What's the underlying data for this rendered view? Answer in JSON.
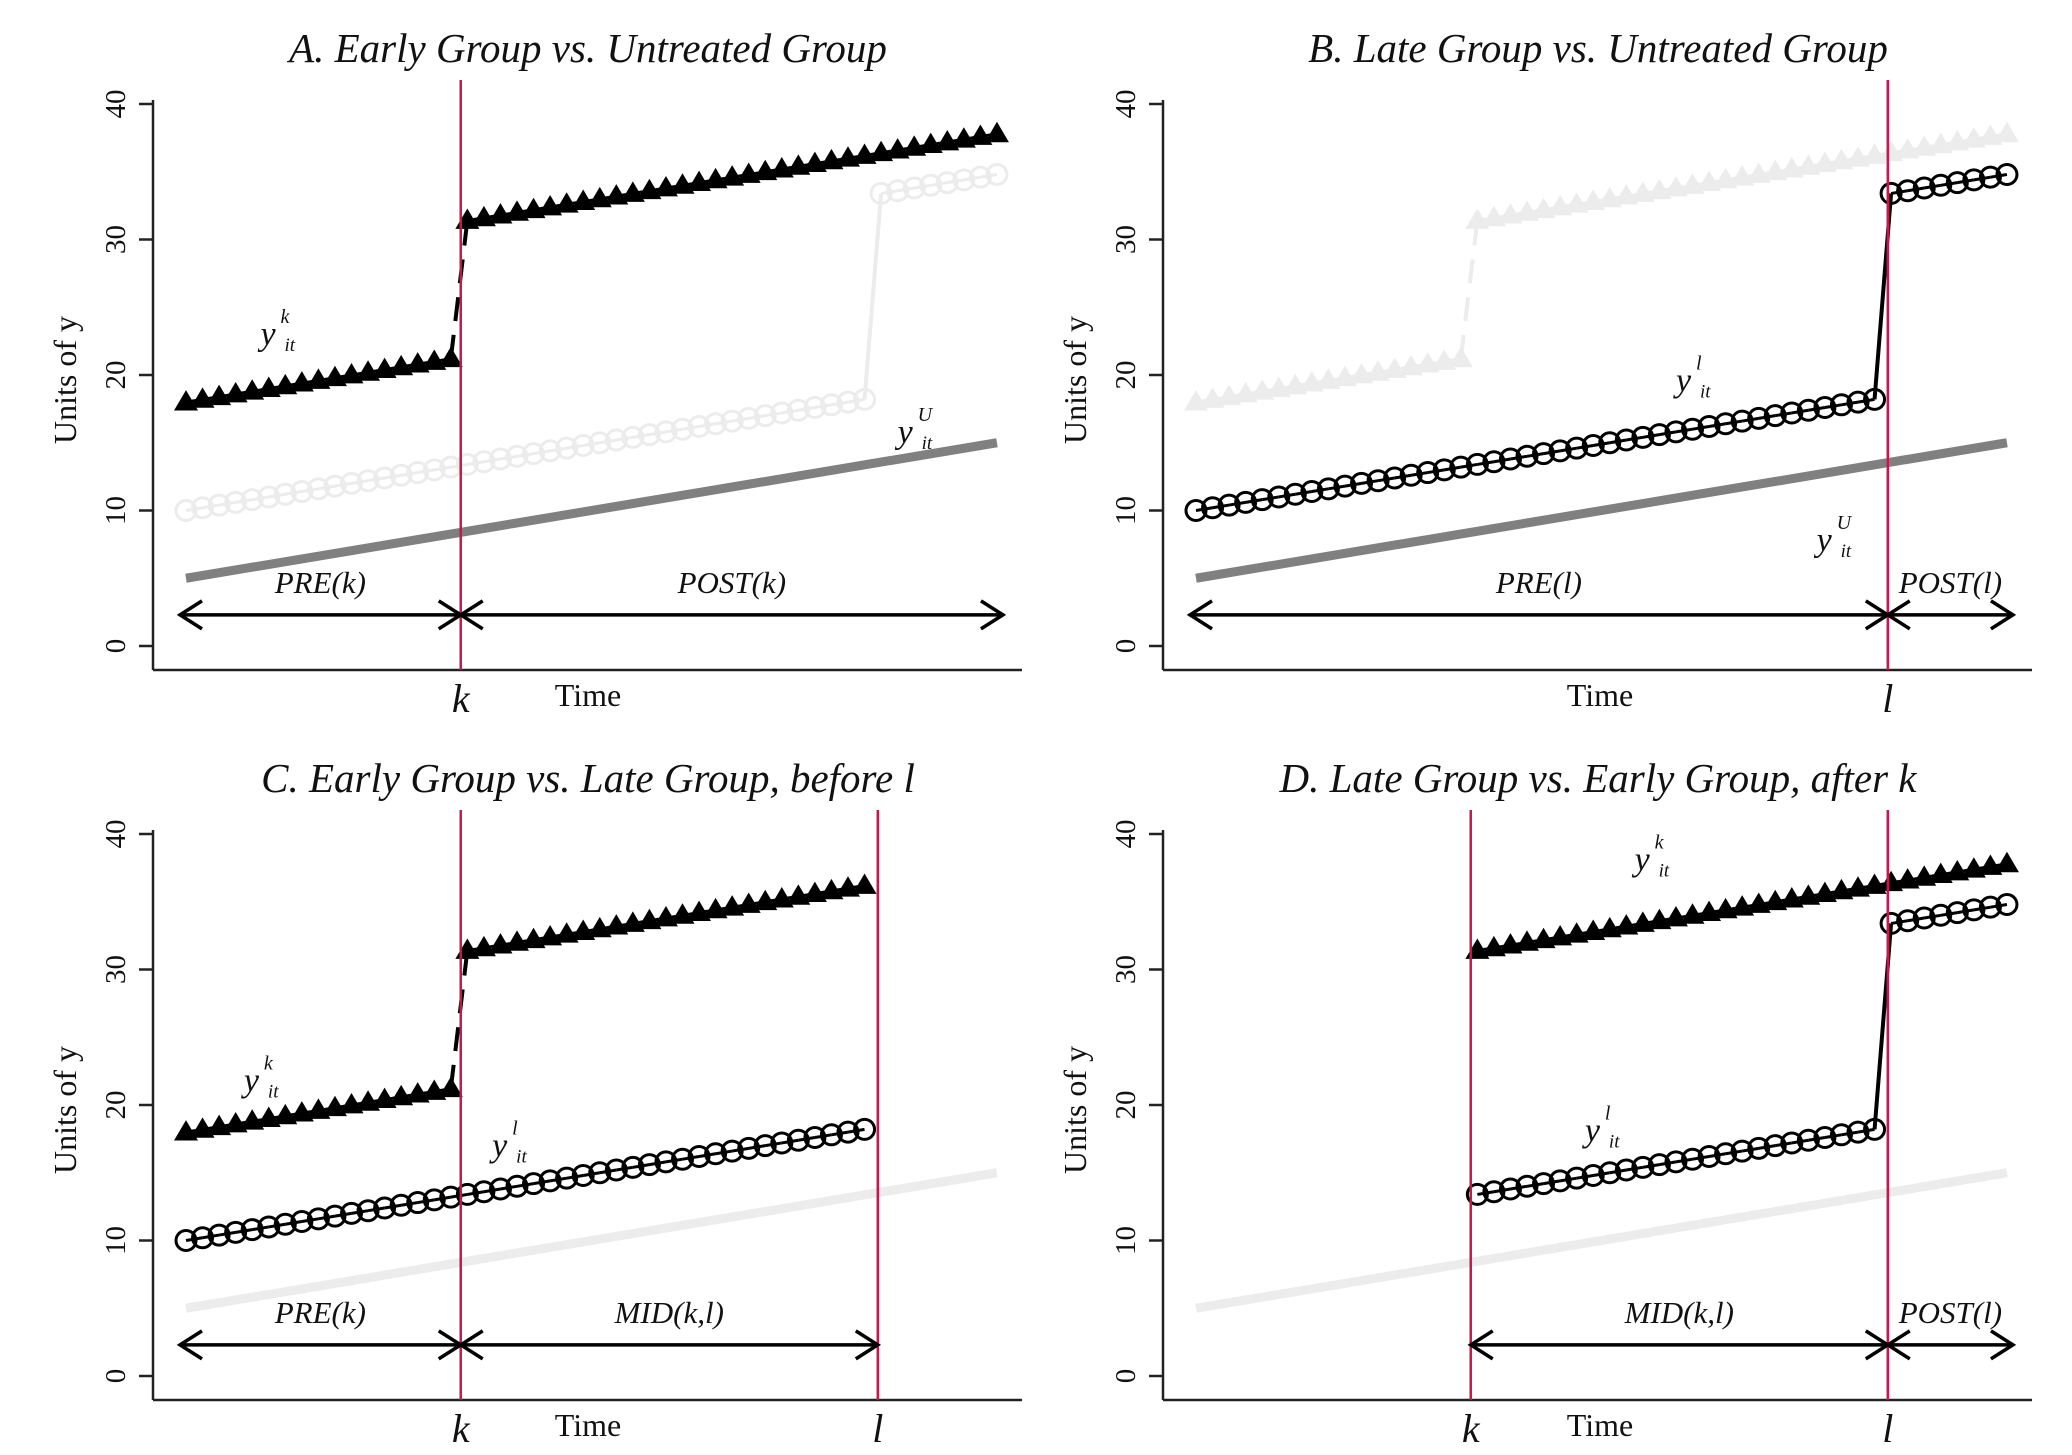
{
  "chart_data": [
    {
      "type": "line",
      "panel": "A",
      "title": "A. Early Group vs. Untreated Group",
      "xlabel": "Time",
      "ylabel": "Units of y",
      "ylim": [
        -2,
        42
      ],
      "yticks": [
        0,
        10,
        20,
        30,
        40
      ],
      "x": {
        "start": 1,
        "end": 50
      },
      "treatment_times": {
        "k": 17.6,
        "l": 42.8
      },
      "vlines": [
        {
          "at": "k",
          "label": "k"
        }
      ],
      "xtick_labels": [
        {
          "at": "k",
          "label": "k"
        }
      ],
      "series": [
        {
          "name": "Early group y^k_it",
          "group": "early",
          "marker": "triangle",
          "style": "solid-black",
          "range": [
            1,
            50
          ],
          "dashed_jump": true
        },
        {
          "name": "Late group y^l_it",
          "group": "late",
          "marker": "circle",
          "style": "faded",
          "range": [
            1,
            50
          ]
        },
        {
          "name": "Untreated group y^U_it",
          "group": "untreated",
          "marker": "none",
          "style": "gray",
          "range": [
            1,
            50
          ]
        }
      ],
      "annotations": [
        {
          "type": "series-label",
          "base": "y",
          "sup": "k",
          "sub": "it",
          "x": 5.5,
          "y": 22.2
        },
        {
          "type": "series-label",
          "base": "y",
          "sup": "U",
          "sub": "it",
          "x": 44,
          "y": 15.0
        },
        {
          "type": "period-arrow",
          "from": 1,
          "to": "k",
          "y": 2,
          "label": "PRE(k)"
        },
        {
          "type": "period-arrow",
          "from": "k",
          "to": 50,
          "y": 2,
          "label": "POST(k)"
        }
      ]
    },
    {
      "type": "line",
      "panel": "B",
      "title": "B. Late Group vs. Untreated Group",
      "xlabel": "Time",
      "ylabel": "Units of y",
      "ylim": [
        -2,
        42
      ],
      "yticks": [
        0,
        10,
        20,
        30,
        40
      ],
      "x": {
        "start": 1,
        "end": 50
      },
      "treatment_times": {
        "k": 17.6,
        "l": 42.8
      },
      "vlines": [
        {
          "at": "l",
          "label": "l"
        }
      ],
      "xtick_labels": [
        {
          "at": "l",
          "label": "l"
        }
      ],
      "series": [
        {
          "name": "Early group y^k_it",
          "group": "early",
          "marker": "triangle",
          "style": "faded",
          "range": [
            1,
            50
          ],
          "dashed_jump": true
        },
        {
          "name": "Late group y^l_it",
          "group": "late",
          "marker": "circle",
          "style": "solid-black",
          "range": [
            1,
            50
          ]
        },
        {
          "name": "Untreated group y^U_it",
          "group": "untreated",
          "marker": "none",
          "style": "gray",
          "range": [
            1,
            50
          ]
        }
      ],
      "annotations": [
        {
          "type": "series-label",
          "base": "y",
          "sup": "l",
          "sub": "it",
          "x": 30,
          "y": 18.8
        },
        {
          "type": "series-label",
          "base": "y",
          "sup": "U",
          "sub": "it",
          "x": 38.5,
          "y": 7.0
        },
        {
          "type": "period-arrow",
          "from": 1,
          "to": "l",
          "y": 2,
          "label": "PRE(l)"
        },
        {
          "type": "period-arrow",
          "from": "l",
          "to": 50,
          "y": 2,
          "label": "POST(l)"
        }
      ]
    },
    {
      "type": "line",
      "panel": "C",
      "title": "C. Early Group vs. Late Group, before l",
      "xlabel": "Time",
      "ylabel": "Units of y",
      "ylim": [
        -2,
        42
      ],
      "yticks": [
        0,
        10,
        20,
        30,
        40
      ],
      "x": {
        "start": 1,
        "end": 50
      },
      "treatment_times": {
        "k": 17.6,
        "l": 42.8
      },
      "vlines": [
        {
          "at": "k",
          "label": "k"
        },
        {
          "at": "l",
          "label": "l"
        }
      ],
      "xtick_labels": [
        {
          "at": "k",
          "label": "k"
        },
        {
          "at": "l",
          "label": "l"
        }
      ],
      "series": [
        {
          "name": "Early group y^k_it",
          "group": "early",
          "marker": "triangle",
          "style": "solid-black",
          "range": [
            1,
            42
          ],
          "dashed_jump": true
        },
        {
          "name": "Late group y^l_it",
          "group": "late",
          "marker": "circle",
          "style": "solid-black",
          "range": [
            1,
            42
          ]
        },
        {
          "name": "Untreated group y^U_it",
          "group": "untreated",
          "marker": "none",
          "style": "faint",
          "range": [
            1,
            50
          ]
        }
      ],
      "annotations": [
        {
          "type": "series-label",
          "base": "y",
          "sup": "k",
          "sub": "it",
          "x": 4.5,
          "y": 21.0
        },
        {
          "type": "series-label",
          "base": "y",
          "sup": "l",
          "sub": "it",
          "x": 19.5,
          "y": 16.2
        },
        {
          "type": "period-arrow",
          "from": 1,
          "to": "k",
          "y": 2,
          "label": "PRE(k)"
        },
        {
          "type": "period-arrow",
          "from": "k",
          "to": "l",
          "y": 2,
          "label": "MID(k,l)"
        }
      ]
    },
    {
      "type": "line",
      "panel": "D",
      "title": "D. Late Group vs. Early Group, after k",
      "xlabel": "Time",
      "ylabel": "Units of y",
      "ylim": [
        -2,
        42
      ],
      "yticks": [
        0,
        10,
        20,
        30,
        40
      ],
      "x": {
        "start": 1,
        "end": 50
      },
      "treatment_times": {
        "k": 17.6,
        "l": 42.8
      },
      "vlines": [
        {
          "at": "k",
          "label": "k"
        },
        {
          "at": "l",
          "label": "l"
        }
      ],
      "xtick_labels": [
        {
          "at": "k",
          "label": "k"
        },
        {
          "at": "l",
          "label": "l"
        }
      ],
      "series": [
        {
          "name": "Early group y^k_it",
          "group": "early",
          "marker": "triangle",
          "style": "solid-black",
          "range": [
            18,
            50
          ]
        },
        {
          "name": "Late group y^l_it",
          "group": "late",
          "marker": "circle",
          "style": "solid-black",
          "range": [
            18,
            50
          ]
        },
        {
          "name": "Untreated group y^U_it",
          "group": "untreated",
          "marker": "none",
          "style": "faint",
          "range": [
            1,
            50
          ]
        }
      ],
      "annotations": [
        {
          "type": "series-label",
          "base": "y",
          "sup": "k",
          "sub": "it",
          "x": 27.5,
          "y": 37.3
        },
        {
          "type": "series-label",
          "base": "y",
          "sup": "l",
          "sub": "it",
          "x": 24.5,
          "y": 17.3
        },
        {
          "type": "period-arrow",
          "from": "k",
          "to": "l",
          "y": 2,
          "label": "MID(k,l)"
        },
        {
          "type": "period-arrow",
          "from": "l",
          "to": 50,
          "y": 2,
          "label": "POST(l)"
        }
      ]
    }
  ],
  "groups": {
    "early": {
      "pre_start": 18.0,
      "slope": 0.2,
      "jump": 10.0,
      "treated_from": 18
    },
    "late": {
      "pre_start": 10.0,
      "slope": 0.2,
      "jump": 15.0,
      "treated_from": 43
    },
    "untreated": {
      "start": 5.0,
      "end": 15.0
    }
  },
  "colors": {
    "treatment_line": "#c8174a",
    "black": "#000000",
    "untreated_gray": "#808080",
    "faded": "#ececec",
    "axis": "#222222"
  }
}
